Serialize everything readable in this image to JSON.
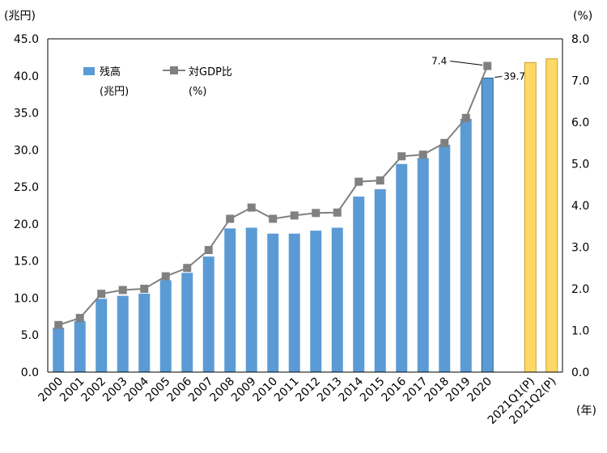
{
  "chart_data": {
    "type": "bar+line",
    "categories": [
      "2000",
      "2001",
      "2002",
      "2003",
      "2004",
      "2005",
      "2006",
      "2007",
      "2008",
      "2009",
      "2010",
      "2011",
      "2012",
      "2013",
      "2014",
      "2015",
      "2016",
      "2017",
      "2018",
      "2019",
      "2020",
      "",
      "2021Q1(P)",
      "2021Q2(P)"
    ],
    "series": [
      {
        "name": "残高",
        "name_unit": "(兆円)",
        "axis": "left",
        "values": [
          6.0,
          6.9,
          9.9,
          10.3,
          10.6,
          12.4,
          13.4,
          15.6,
          19.4,
          19.5,
          18.7,
          18.7,
          19.1,
          19.5,
          23.7,
          24.7,
          28.1,
          28.9,
          30.7,
          34.2,
          39.7,
          null,
          41.8,
          42.3
        ],
        "colors": {
          "actual": "#5b9bd5",
          "latest": "#3d85c6",
          "preliminary": "#ffd966"
        },
        "data_labels": [
          {
            "index": 20,
            "text": "39.7"
          }
        ]
      },
      {
        "name": "対GDP比",
        "name_unit": "(%)",
        "axis": "right",
        "values": [
          1.13,
          1.3,
          1.88,
          1.97,
          2.0,
          2.3,
          2.5,
          2.93,
          3.68,
          3.95,
          3.68,
          3.76,
          3.82,
          3.83,
          4.57,
          4.6,
          5.18,
          5.22,
          5.5,
          6.1,
          7.35,
          null,
          null,
          null
        ],
        "color": "#808080",
        "data_labels": [
          {
            "index": 20,
            "text": "7.4"
          }
        ]
      }
    ],
    "y_left": {
      "unit": "(兆円)",
      "min": 0,
      "max": 45,
      "ticks": [
        "0.0",
        "5.0",
        "10.0",
        "15.0",
        "20.0",
        "25.0",
        "30.0",
        "35.0",
        "40.0",
        "45.0"
      ]
    },
    "y_right": {
      "unit": "(%)",
      "min": 0,
      "max": 8,
      "ticks": [
        "0.0",
        "1.0",
        "2.0",
        "3.0",
        "4.0",
        "5.0",
        "6.0",
        "7.0",
        "8.0"
      ]
    },
    "x_unit": "(年)",
    "legend_position": "top-left",
    "grid": false
  }
}
